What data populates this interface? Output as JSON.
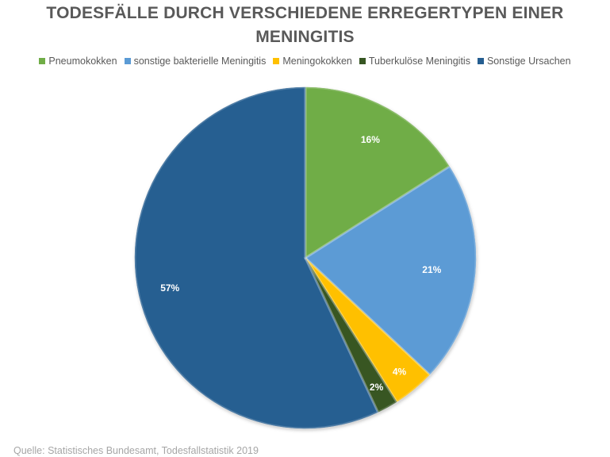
{
  "chart_data": {
    "type": "pie",
    "title": "TODESFÄLLE DURCH VERSCHIEDENE ERREGERTYPEN EINER MENINGITIS",
    "categories": [
      "Pneumokokken",
      "sonstige bakterielle Meningitis",
      "Meningokokken",
      "Tuberkulöse Meningitis",
      "Sonstige Ursachen"
    ],
    "values": [
      16,
      21,
      4,
      2,
      57
    ],
    "data_labels": [
      "16%",
      "21%",
      "4%",
      "2%",
      "57%"
    ],
    "colors": [
      "#70ad47",
      "#5b9bd5",
      "#ffc000",
      "#375623",
      "#255e91"
    ],
    "legend_position": "top",
    "start_angle": "12 o'clock, clockwise"
  },
  "source": "Quelle: Statistisches Bundesamt, Todesfallstatistik 2019"
}
